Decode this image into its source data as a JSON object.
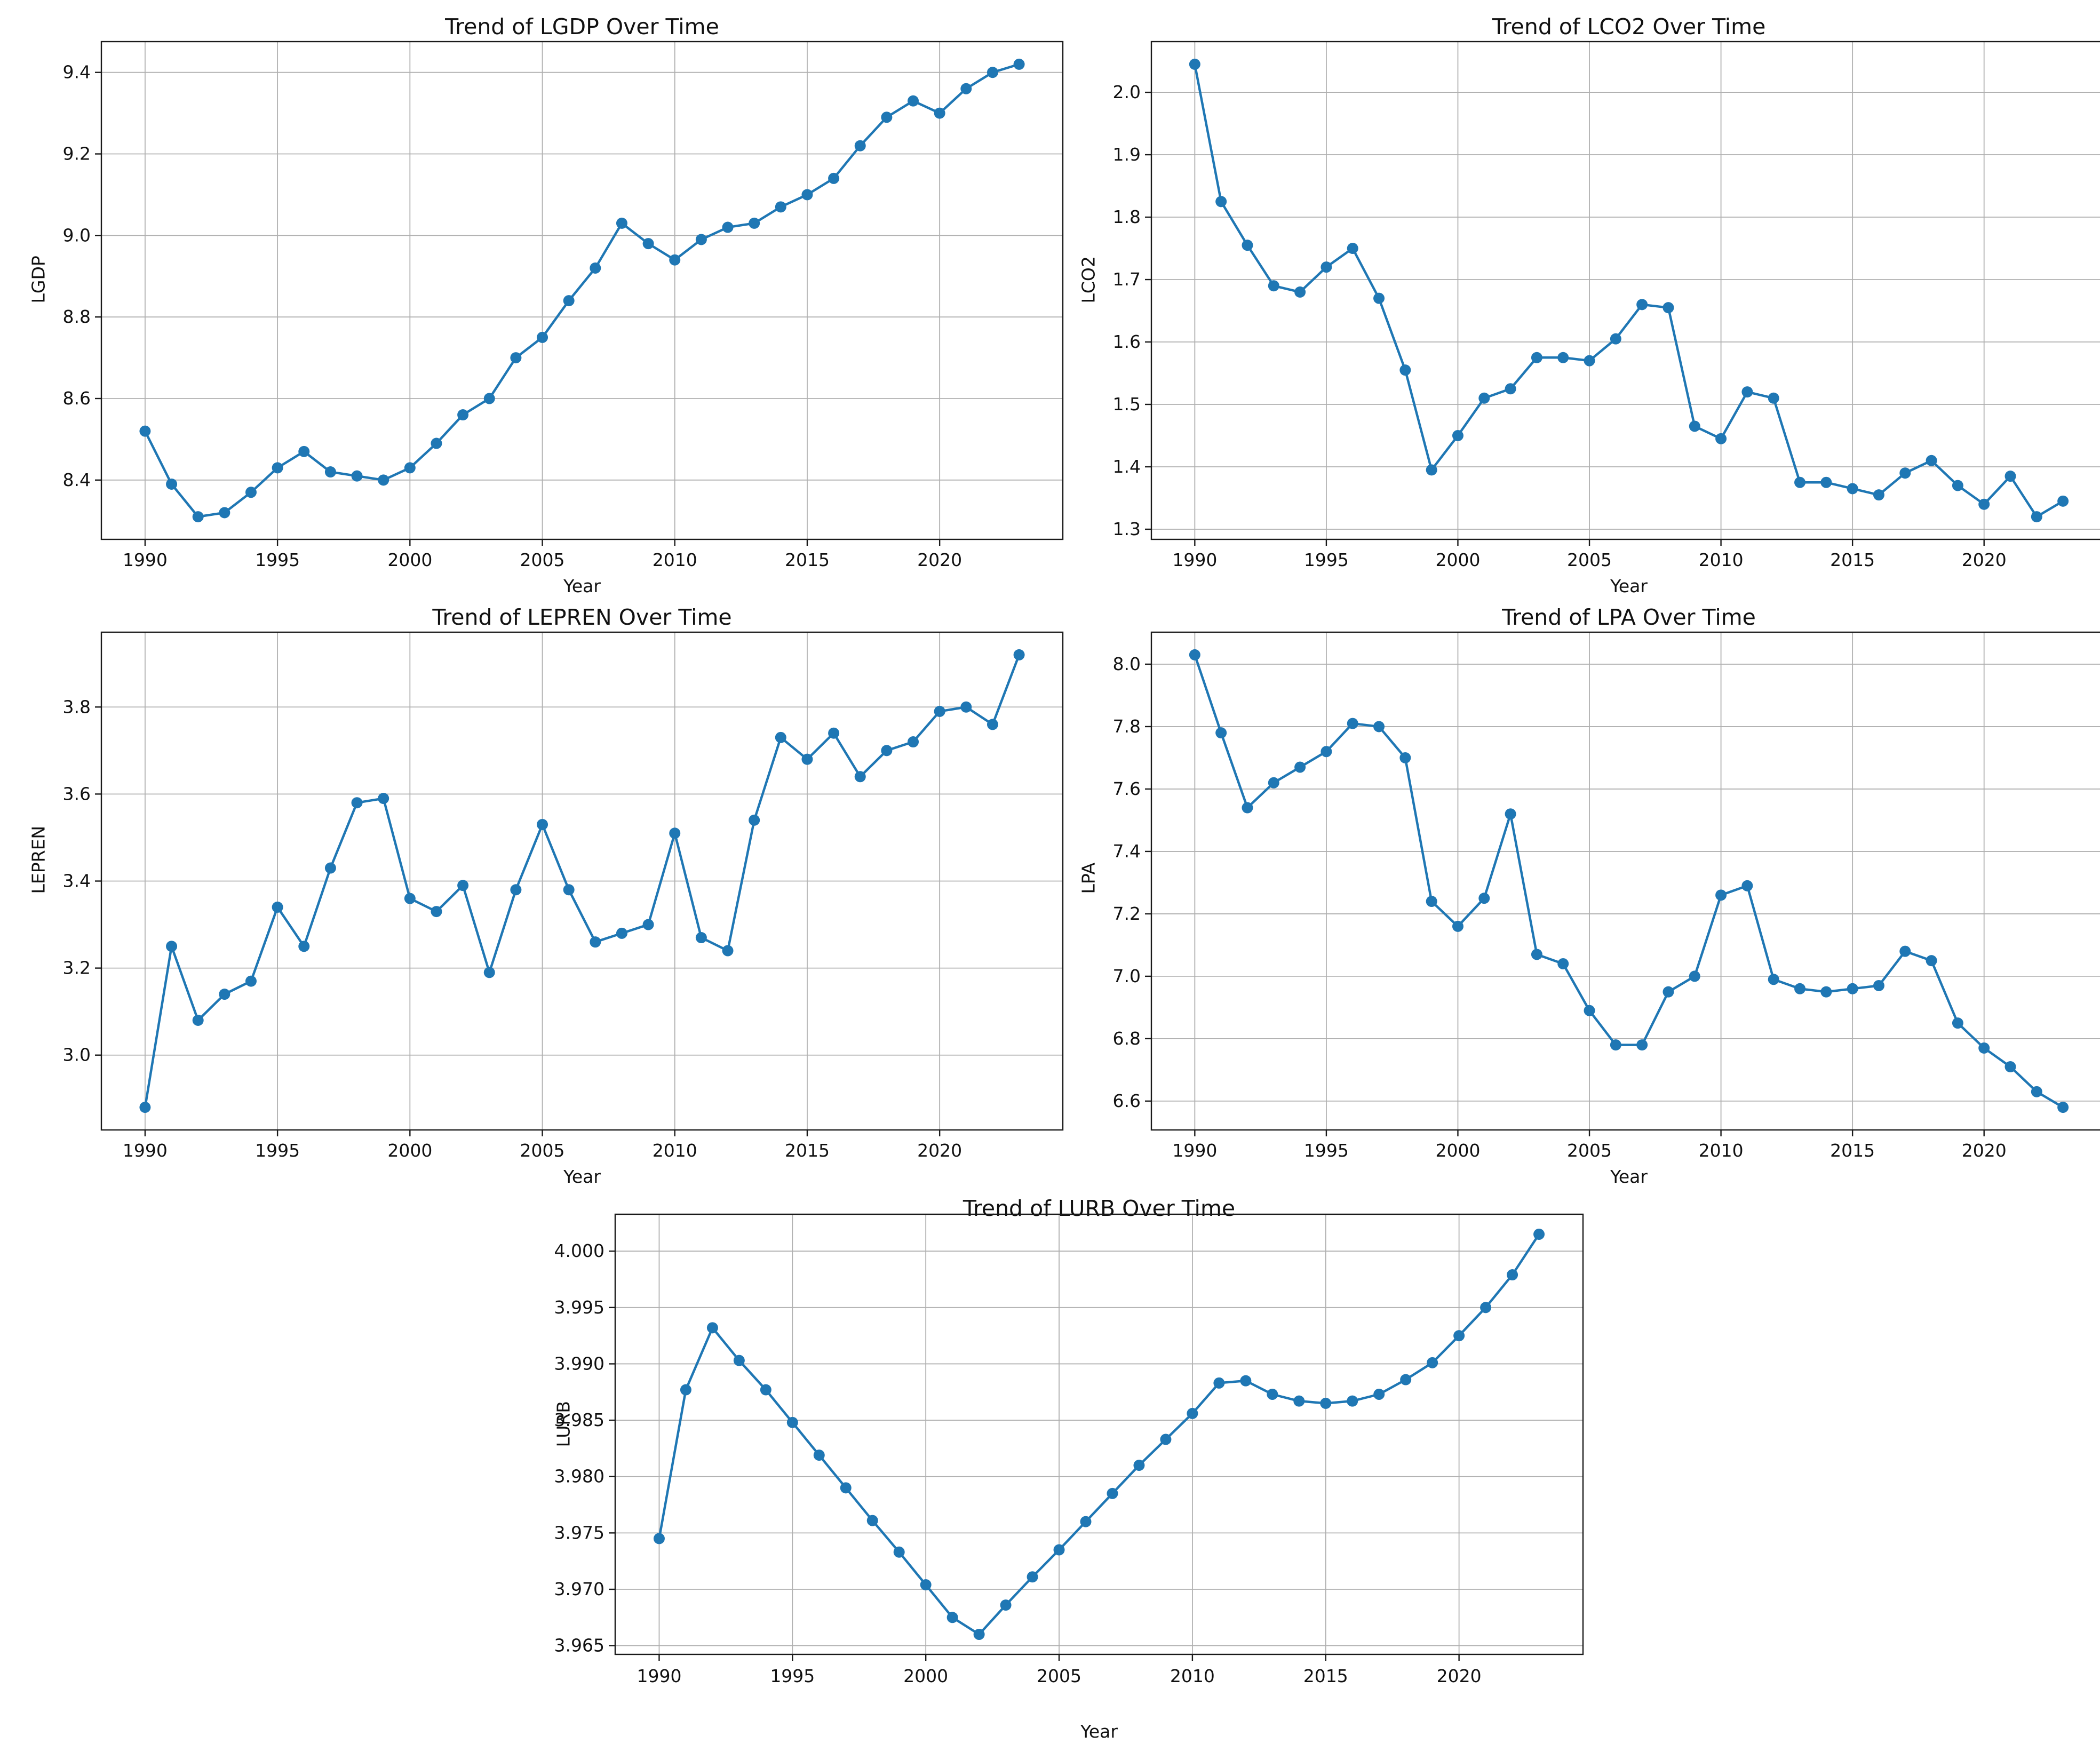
{
  "figure": {
    "background": "#ffffff",
    "line_color": "#1f77b4",
    "grid_color": "#b0b0b0",
    "spine_color": "#1a1a1a",
    "marker": "o"
  },
  "chart_data": [
    {
      "type": "line",
      "title": "Trend of LGDP Over Time",
      "xlabel": "Year",
      "ylabel": "LGDP",
      "x": [
        1990,
        1991,
        1992,
        1993,
        1994,
        1995,
        1996,
        1997,
        1998,
        1999,
        2000,
        2001,
        2002,
        2003,
        2004,
        2005,
        2006,
        2007,
        2008,
        2009,
        2010,
        2011,
        2012,
        2013,
        2014,
        2015,
        2016,
        2017,
        2018,
        2019,
        2020,
        2021,
        2022,
        2023
      ],
      "values": [
        8.52,
        8.39,
        8.31,
        8.32,
        8.37,
        8.43,
        8.47,
        8.42,
        8.41,
        8.4,
        8.43,
        8.49,
        8.56,
        8.6,
        8.7,
        8.75,
        8.84,
        8.92,
        9.03,
        8.98,
        8.94,
        8.99,
        9.02,
        9.03,
        9.07,
        9.1,
        9.14,
        9.22,
        9.29,
        9.33,
        9.3,
        9.36,
        9.4,
        9.42
      ],
      "xticks": [
        1990,
        1995,
        2000,
        2005,
        2010,
        2015,
        2020
      ],
      "yticks": [
        8.4,
        8.6,
        8.8,
        9.0,
        9.2,
        9.4
      ],
      "ytick_decimals": 1,
      "xlim": [
        1988.35,
        2024.65
      ],
      "ylim": [
        8.2545,
        9.4755
      ],
      "grid": true,
      "legend": "none"
    },
    {
      "type": "line",
      "title": "Trend of LCO2 Over Time",
      "xlabel": "Year",
      "ylabel": "LCO2",
      "x": [
        1990,
        1991,
        1992,
        1993,
        1994,
        1995,
        1996,
        1997,
        1998,
        1999,
        2000,
        2001,
        2002,
        2003,
        2004,
        2005,
        2006,
        2007,
        2008,
        2009,
        2010,
        2011,
        2012,
        2013,
        2014,
        2015,
        2016,
        2017,
        2018,
        2019,
        2020,
        2021,
        2022,
        2023
      ],
      "values": [
        2.045,
        1.825,
        1.755,
        1.69,
        1.68,
        1.72,
        1.75,
        1.67,
        1.555,
        1.395,
        1.45,
        1.51,
        1.525,
        1.575,
        1.575,
        1.57,
        1.605,
        1.66,
        1.655,
        1.465,
        1.445,
        1.52,
        1.51,
        1.375,
        1.375,
        1.365,
        1.355,
        1.39,
        1.41,
        1.37,
        1.34,
        1.385,
        1.32,
        1.345
      ],
      "xticks": [
        1990,
        1995,
        2000,
        2005,
        2010,
        2015,
        2020
      ],
      "yticks": [
        1.3,
        1.4,
        1.5,
        1.6,
        1.7,
        1.8,
        1.9,
        2.0
      ],
      "ytick_decimals": 1,
      "xlim": [
        1988.35,
        2024.65
      ],
      "ylim": [
        1.28375,
        2.08125
      ],
      "grid": true,
      "legend": "none"
    },
    {
      "type": "line",
      "title": "Trend of LEPREN Over Time",
      "xlabel": "Year",
      "ylabel": "LEPREN",
      "x": [
        1990,
        1991,
        1992,
        1993,
        1994,
        1995,
        1996,
        1997,
        1998,
        1999,
        2000,
        2001,
        2002,
        2003,
        2004,
        2005,
        2006,
        2007,
        2008,
        2009,
        2010,
        2011,
        2012,
        2013,
        2014,
        2015,
        2016,
        2017,
        2018,
        2019,
        2020,
        2021,
        2022,
        2023
      ],
      "values": [
        2.88,
        3.25,
        3.08,
        3.14,
        3.17,
        3.34,
        3.25,
        3.43,
        3.58,
        3.59,
        3.36,
        3.33,
        3.39,
        3.19,
        3.38,
        3.53,
        3.38,
        3.26,
        3.28,
        3.3,
        3.51,
        3.27,
        3.24,
        3.54,
        3.73,
        3.68,
        3.74,
        3.64,
        3.7,
        3.72,
        3.79,
        3.8,
        3.76,
        3.92
      ],
      "xticks": [
        1990,
        1995,
        2000,
        2005,
        2010,
        2015,
        2020
      ],
      "yticks": [
        3.0,
        3.2,
        3.4,
        3.6,
        3.8
      ],
      "ytick_decimals": 1,
      "xlim": [
        1988.35,
        2024.65
      ],
      "ylim": [
        2.828,
        3.972
      ],
      "grid": true,
      "legend": "none"
    },
    {
      "type": "line",
      "title": "Trend of LPA Over Time",
      "xlabel": "Year",
      "ylabel": "LPA",
      "x": [
        1990,
        1991,
        1992,
        1993,
        1994,
        1995,
        1996,
        1997,
        1998,
        1999,
        2000,
        2001,
        2002,
        2003,
        2004,
        2005,
        2006,
        2007,
        2008,
        2009,
        2010,
        2011,
        2012,
        2013,
        2014,
        2015,
        2016,
        2017,
        2018,
        2019,
        2020,
        2021,
        2022,
        2023
      ],
      "values": [
        8.03,
        7.78,
        7.54,
        7.62,
        7.67,
        7.72,
        7.81,
        7.8,
        7.7,
        7.24,
        7.16,
        7.25,
        7.52,
        7.07,
        7.04,
        6.89,
        6.78,
        6.78,
        6.95,
        7.0,
        7.26,
        7.29,
        6.99,
        6.96,
        6.95,
        6.96,
        6.97,
        7.08,
        7.05,
        6.85,
        6.77,
        6.71,
        6.63,
        6.58
      ],
      "xticks": [
        1990,
        1995,
        2000,
        2005,
        2010,
        2015,
        2020
      ],
      "yticks": [
        6.6,
        6.8,
        7.0,
        7.2,
        7.4,
        7.6,
        7.8,
        8.0
      ],
      "ytick_decimals": 1,
      "xlim": [
        1988.35,
        2024.65
      ],
      "ylim": [
        6.5075,
        8.1025
      ],
      "grid": true,
      "legend": "none"
    },
    {
      "type": "line",
      "title": "Trend of LURB Over Time",
      "xlabel": "Year",
      "ylabel": "LURB",
      "x": [
        1990,
        1991,
        1992,
        1993,
        1994,
        1995,
        1996,
        1997,
        1998,
        1999,
        2000,
        2001,
        2002,
        2003,
        2004,
        2005,
        2006,
        2007,
        2008,
        2009,
        2010,
        2011,
        2012,
        2013,
        2014,
        2015,
        2016,
        2017,
        2018,
        2019,
        2020,
        2021,
        2022,
        2023
      ],
      "values": [
        3.9745,
        3.9877,
        3.9932,
        3.9903,
        3.9877,
        3.9848,
        3.9819,
        3.979,
        3.9761,
        3.9733,
        3.9704,
        3.9675,
        3.966,
        3.9686,
        3.9711,
        3.9735,
        3.976,
        3.9785,
        3.981,
        3.9833,
        3.9856,
        3.9883,
        3.9885,
        3.9873,
        3.9867,
        3.9865,
        3.9867,
        3.9873,
        3.9886,
        3.9901,
        3.9925,
        3.995,
        3.9979,
        4.0015
      ],
      "xticks": [
        1990,
        1995,
        2000,
        2005,
        2010,
        2015,
        2020
      ],
      "yticks": [
        3.965,
        3.97,
        3.975,
        3.98,
        3.985,
        3.99,
        3.995,
        4.0
      ],
      "ytick_decimals": 3,
      "xlim": [
        1988.35,
        2024.65
      ],
      "ylim": [
        3.964225,
        4.003275
      ],
      "grid": true,
      "legend": "none"
    }
  ]
}
